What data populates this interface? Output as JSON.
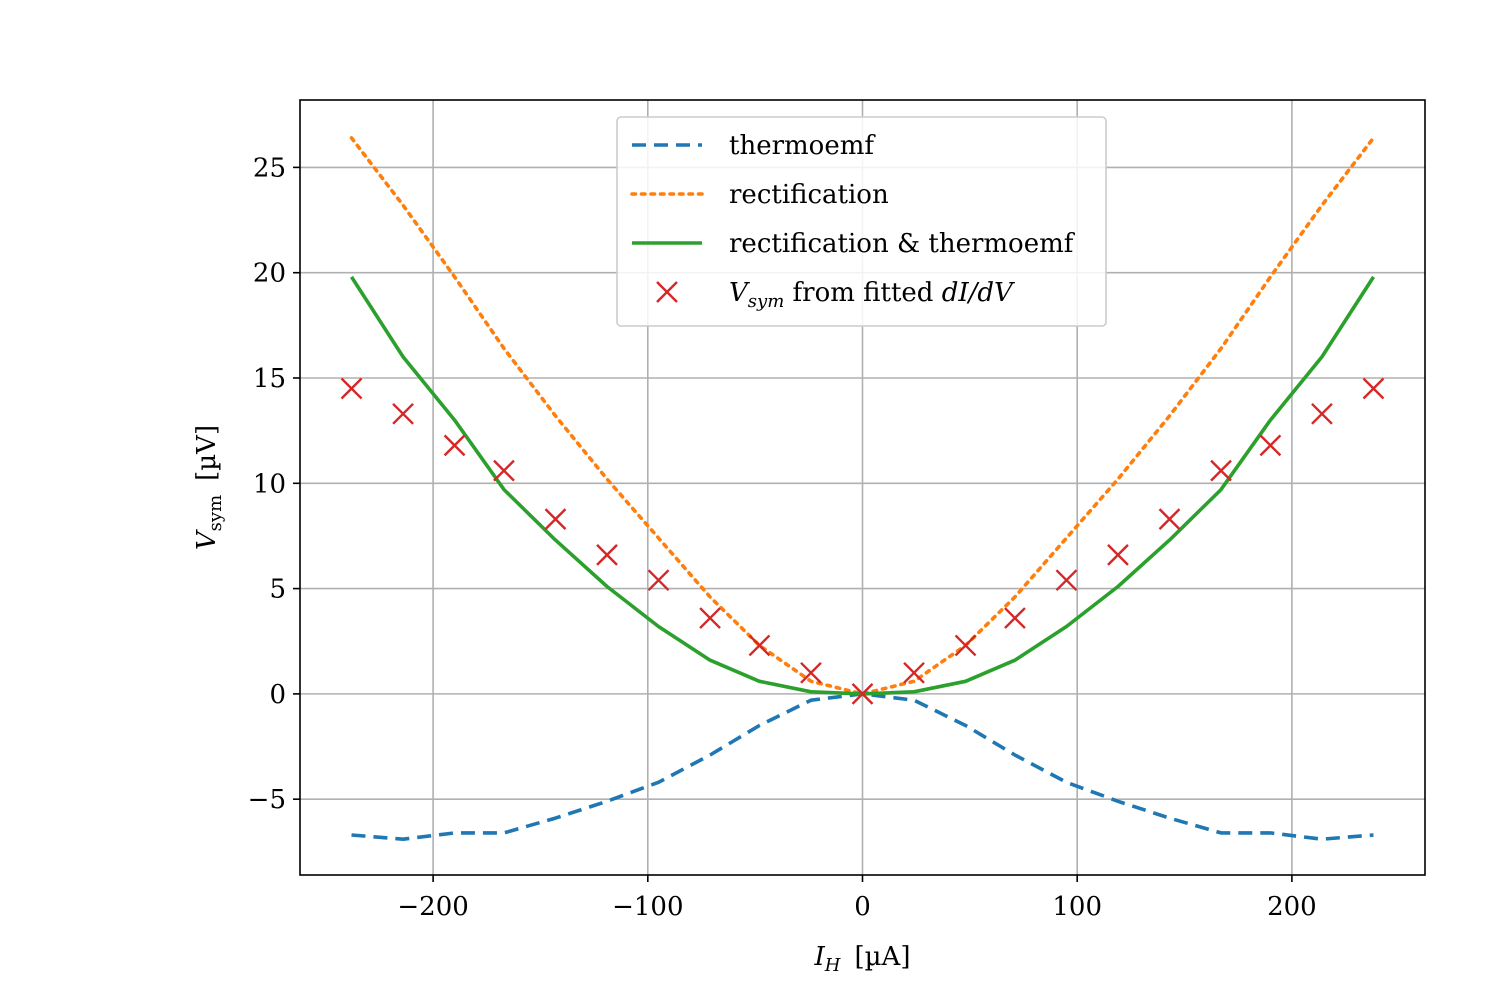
{
  "chart_data": {
    "type": "line",
    "xlabel_main": "I",
    "xlabel_sub": "H",
    "xlabel_unit": "[µA]",
    "ylabel_main": "V",
    "ylabel_sub": "sym",
    "ylabel_unit": "[µV]",
    "xlim": [
      -262,
      262
    ],
    "ylim": [
      -8.6,
      28.2
    ],
    "xticks": [
      -200,
      -100,
      0,
      100,
      200
    ],
    "xtick_labels": [
      "−200",
      "−100",
      "0",
      "100",
      "200"
    ],
    "yticks": [
      -5,
      0,
      5,
      10,
      15,
      20,
      25
    ],
    "ytick_labels": [
      "−5",
      "0",
      "5",
      "10",
      "15",
      "20",
      "25"
    ],
    "grid": true,
    "legend_position": "top-center",
    "series": [
      {
        "name": "thermoemf",
        "style": "dashed",
        "color": "#1f77b4",
        "x": [
          -238,
          -214,
          -190,
          -167,
          -143,
          -119,
          -95,
          -71,
          -48,
          -24,
          0,
          24,
          48,
          71,
          95,
          119,
          143,
          167,
          190,
          214,
          238
        ],
        "y": [
          -6.7,
          -6.9,
          -6.6,
          -6.6,
          -5.9,
          -5.1,
          -4.2,
          -2.9,
          -1.5,
          -0.3,
          0.0,
          -0.3,
          -1.5,
          -2.9,
          -4.2,
          -5.1,
          -5.9,
          -6.6,
          -6.6,
          -6.9,
          -6.7
        ]
      },
      {
        "name": "rectification",
        "style": "dotted",
        "color": "#ff7f0e",
        "x": [
          -238,
          -214,
          -190,
          -167,
          -143,
          -119,
          -95,
          -71,
          -48,
          -24,
          0,
          24,
          48,
          71,
          95,
          119,
          143,
          167,
          190,
          214,
          238
        ],
        "y": [
          26.4,
          23.2,
          19.8,
          16.4,
          13.2,
          10.2,
          7.4,
          4.6,
          2.3,
          0.6,
          0.0,
          0.6,
          2.3,
          4.6,
          7.4,
          10.2,
          13.2,
          16.4,
          19.8,
          23.2,
          26.4
        ]
      },
      {
        "name": "rectification & thermoemf",
        "style": "solid",
        "color": "#2ca02c",
        "x": [
          -238,
          -214,
          -190,
          -167,
          -143,
          -119,
          -95,
          -71,
          -48,
          -24,
          0,
          24,
          48,
          71,
          95,
          119,
          143,
          167,
          190,
          214,
          238
        ],
        "y": [
          19.8,
          16.0,
          13.0,
          9.7,
          7.3,
          5.1,
          3.2,
          1.6,
          0.6,
          0.1,
          0.0,
          0.1,
          0.6,
          1.6,
          3.2,
          5.1,
          7.3,
          9.7,
          13.0,
          16.0,
          19.8
        ]
      },
      {
        "name_main": "V",
        "name_sub": "sym",
        "name_rest": " from fitted ",
        "name_italic_end": "dI/dV",
        "style": "markers-x",
        "color": "#d62728",
        "x": [
          -238,
          -214,
          -190,
          -167,
          -143,
          -119,
          -95,
          -71,
          -48,
          -24,
          0,
          24,
          48,
          71,
          95,
          119,
          143,
          167,
          190,
          214,
          238
        ],
        "y": [
          14.5,
          13.3,
          11.8,
          10.6,
          8.3,
          6.6,
          5.4,
          3.6,
          2.3,
          1.0,
          0.0,
          1.0,
          2.3,
          3.6,
          5.4,
          6.6,
          8.3,
          10.6,
          11.8,
          13.3,
          14.5
        ]
      }
    ]
  }
}
